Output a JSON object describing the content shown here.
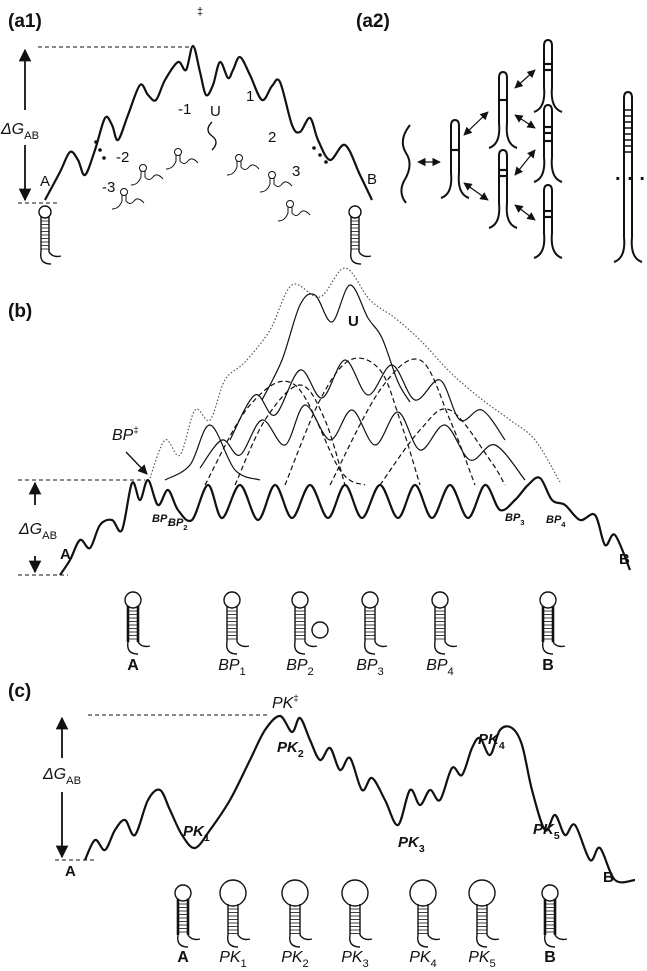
{
  "panels": {
    "a1": {
      "label": "(a1)",
      "delta_g": {
        "main": "ΔG",
        "sub": "AB"
      },
      "dagger": "‡",
      "states": [
        "A",
        "-3",
        "-2",
        "-1",
        "U",
        "1",
        "2",
        "3",
        "B"
      ]
    },
    "a2": {
      "label": "(a2)",
      "ellipsis": "· · ·"
    },
    "b": {
      "label": "(b)",
      "delta_g": {
        "main": "ΔG",
        "sub": "AB"
      },
      "transition": {
        "main": "BP",
        "sup": "‡"
      },
      "landscape_labels": [
        "A",
        "U",
        "B"
      ],
      "peak_labels": [
        {
          "main": "BP",
          "sub": "1"
        },
        {
          "main": "BP",
          "sub": "2"
        },
        {
          "main": "BP",
          "sub": "3"
        },
        {
          "main": "BP",
          "sub": "4"
        }
      ],
      "structures": [
        {
          "main": "A"
        },
        {
          "main": "BP",
          "sub": "1"
        },
        {
          "main": "BP",
          "sub": "2"
        },
        {
          "main": "BP",
          "sub": "3"
        },
        {
          "main": "BP",
          "sub": "4"
        },
        {
          "main": "B"
        }
      ]
    },
    "c": {
      "label": "(c)",
      "delta_g": {
        "main": "ΔG",
        "sub": "AB"
      },
      "transition": {
        "main": "PK",
        "sup": "‡"
      },
      "landscape_labels": [
        "A",
        "B"
      ],
      "peak_labels": [
        {
          "main": "PK",
          "sub": "1"
        },
        {
          "main": "PK",
          "sub": "2"
        },
        {
          "main": "PK",
          "sub": "3"
        },
        {
          "main": "PK",
          "sub": "4"
        },
        {
          "main": "PK",
          "sub": "5"
        }
      ],
      "structures": [
        {
          "main": "A"
        },
        {
          "main": "PK",
          "sub": "1"
        },
        {
          "main": "PK",
          "sub": "2"
        },
        {
          "main": "PK",
          "sub": "3"
        },
        {
          "main": "PK",
          "sub": "4"
        },
        {
          "main": "PK",
          "sub": "5"
        },
        {
          "main": "B"
        }
      ]
    }
  }
}
